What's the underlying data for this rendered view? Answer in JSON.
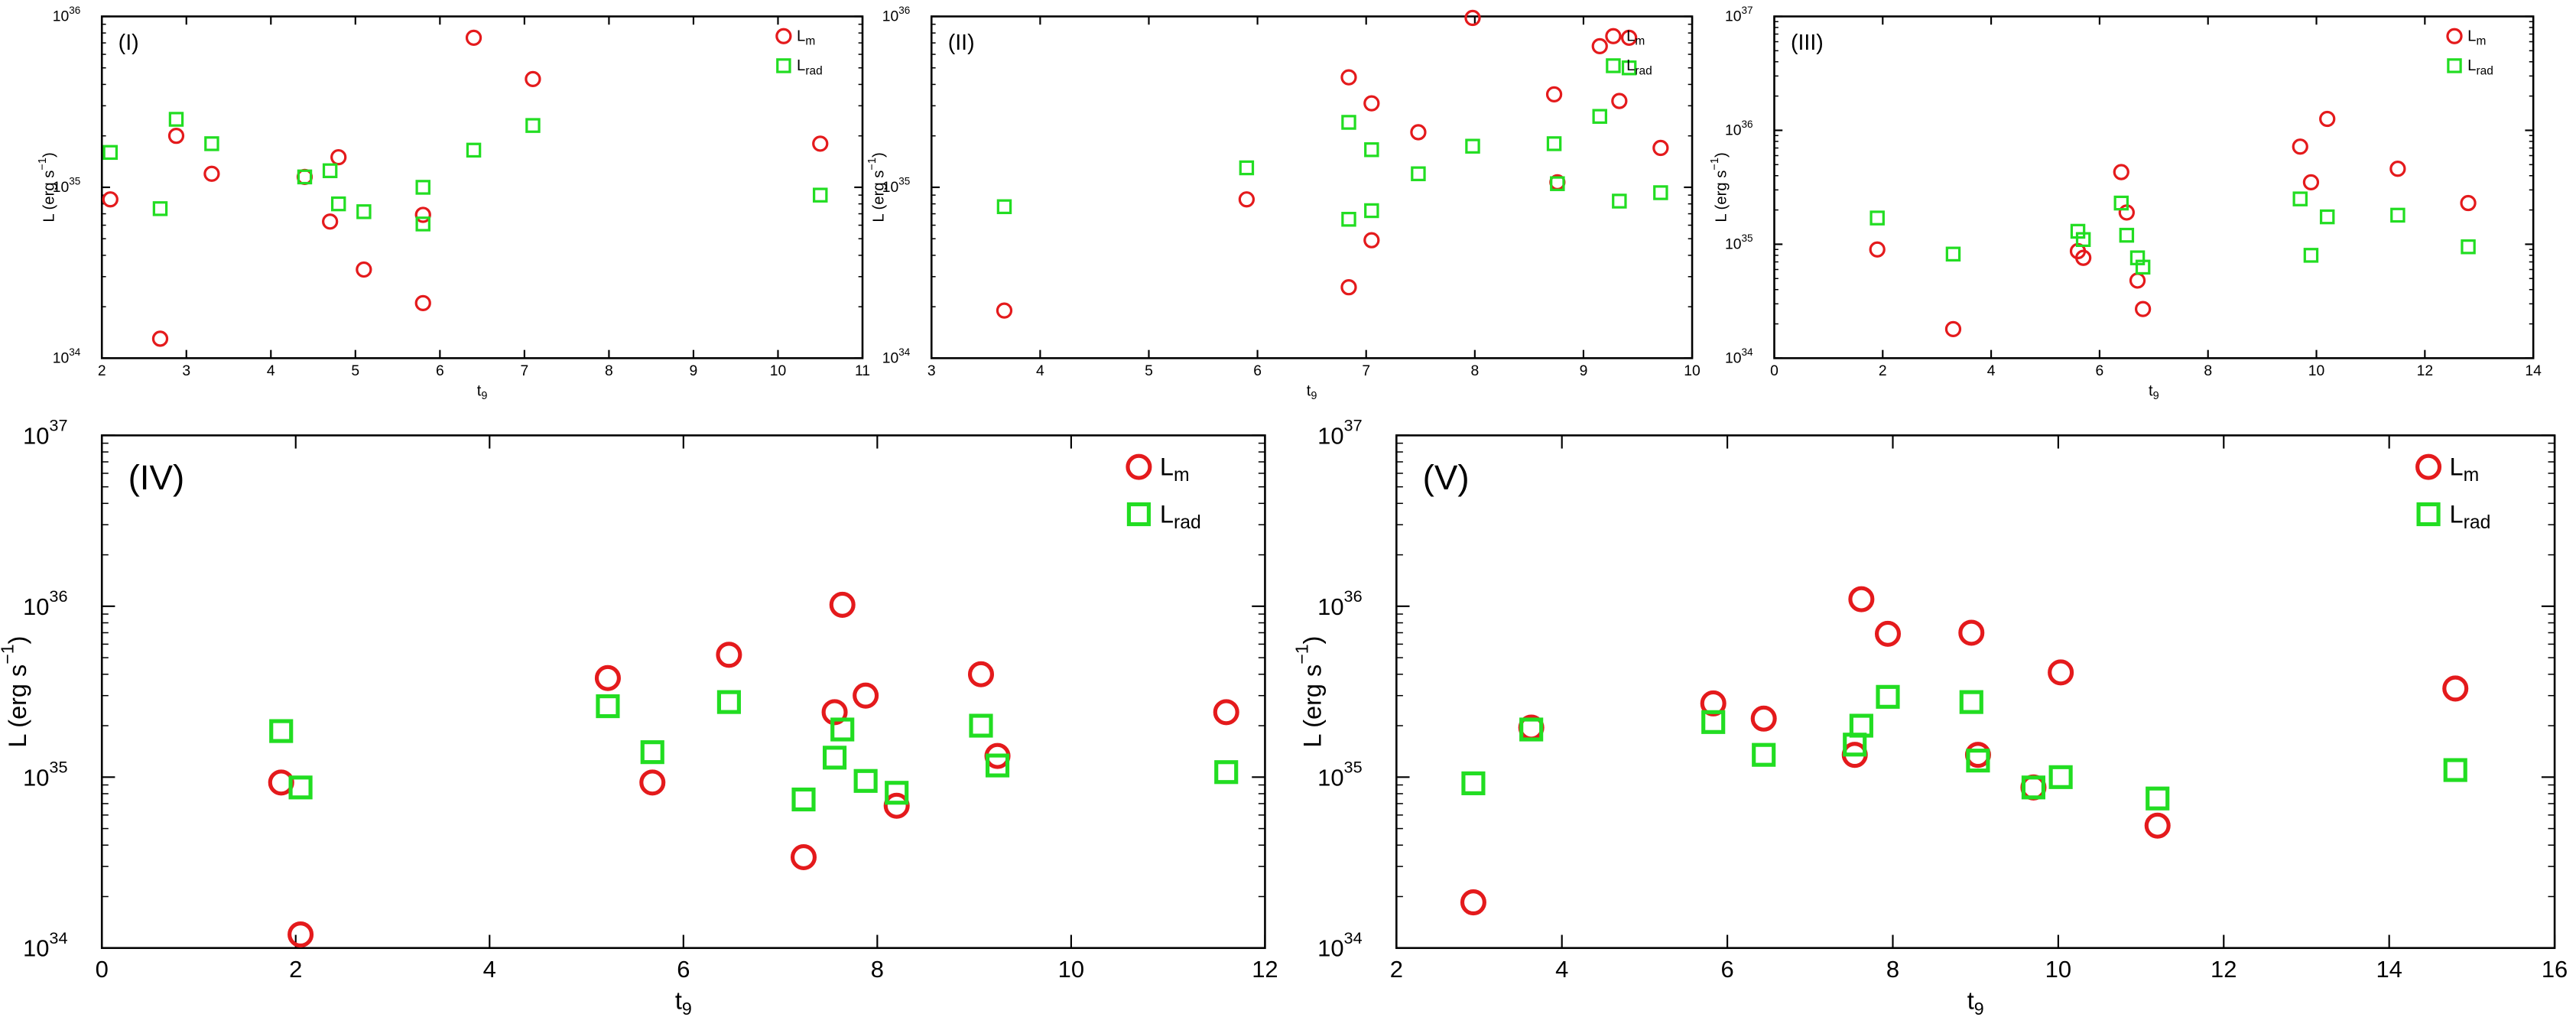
{
  "chart_data": [
    {
      "type": "scatter",
      "panel_label": "(I)",
      "x_label": [
        "t",
        "9"
      ],
      "y_label": [
        "L (erg s",
        "−1",
        ")"
      ],
      "xlim": [
        2,
        11
      ],
      "xticks": [
        2,
        3,
        4,
        5,
        6,
        7,
        8,
        9,
        10,
        11
      ],
      "ylim": [
        1e+34,
        1e+36
      ],
      "log_y": true,
      "yticks": [
        {
          "value": 1e+34,
          "label": "10",
          "exponent": "34"
        },
        {
          "value": 1e+35,
          "label": "10",
          "exponent": "35"
        },
        {
          "value": 1e+36,
          "label": "10",
          "exponent": "36"
        }
      ],
      "legend": "upper right",
      "series": [
        {
          "name": "L",
          "name_sub": "m",
          "color": "#e41a1c",
          "marker": "circle",
          "x": [
            2.1,
            2.69,
            2.88,
            3.3,
            4.4,
            4.7,
            4.8,
            5.1,
            5.8,
            5.8,
            6.4,
            7.1,
            10.5
          ],
          "values": [
            8.5e+34,
            1.3e+34,
            2e+35,
            1.2e+35,
            1.15e+35,
            6.3e+34,
            1.5e+35,
            3.3e+34,
            6.9e+34,
            2.1e+34,
            7.5e+35,
            4.3e+35,
            1.8e+35
          ]
        },
        {
          "name": "L",
          "name_sub": "rad",
          "color": "#22dd22",
          "marker": "square",
          "x": [
            2.1,
            2.69,
            2.88,
            3.3,
            4.4,
            4.7,
            4.8,
            5.1,
            5.8,
            5.8,
            6.4,
            7.1,
            10.5
          ],
          "values": [
            1.6e+35,
            7.5e+34,
            2.5e+35,
            1.8e+35,
            1.15e+35,
            1.25e+35,
            8e+34,
            7.2e+34,
            1e+35,
            6.1e+34,
            1.65e+35,
            2.3e+35,
            9e+34
          ]
        }
      ]
    },
    {
      "type": "scatter",
      "panel_label": "(II)",
      "x_label": [
        "t",
        "9"
      ],
      "y_label": [
        "L (erg s",
        "−1",
        ")"
      ],
      "xlim": [
        3,
        10
      ],
      "xticks": [
        3,
        4,
        5,
        6,
        7,
        8,
        9,
        10
      ],
      "ylim": [
        1e+34,
        1e+36
      ],
      "log_y": true,
      "yticks": [
        {
          "value": 1e+34,
          "label": "10",
          "exponent": "34"
        },
        {
          "value": 1e+35,
          "label": "10",
          "exponent": "35"
        },
        {
          "value": 1e+36,
          "label": "10",
          "exponent": "36"
        }
      ],
      "legend": "upper right",
      "series": [
        {
          "name": "L",
          "name_sub": "m",
          "color": "#e41a1c",
          "marker": "circle",
          "x": [
            3.67,
            5.9,
            6.84,
            6.84,
            7.05,
            7.05,
            7.48,
            7.98,
            8.73,
            8.76,
            9.15,
            9.33,
            9.42,
            9.71
          ],
          "values": [
            1.9e+34,
            8.5e+34,
            4.4e+35,
            2.6e+34,
            3.1e+35,
            4.9e+34,
            2.1e+35,
            9.8e+35,
            3.5e+35,
            1.07e+35,
            6.7e+35,
            3.2e+35,
            7.5e+35,
            1.7e+35
          ]
        },
        {
          "name": "L",
          "name_sub": "rad",
          "color": "#22dd22",
          "marker": "square",
          "x": [
            3.67,
            5.9,
            6.84,
            6.84,
            7.05,
            7.05,
            7.48,
            7.98,
            8.73,
            8.76,
            9.15,
            9.33,
            9.42,
            9.71
          ],
          "values": [
            7.7e+34,
            1.3e+35,
            2.4e+35,
            6.5e+34,
            1.66e+35,
            7.3e+34,
            1.2e+35,
            1.74e+35,
            1.8e+35,
            1.05e+35,
            2.6e+35,
            8.3e+34,
            5e+35,
            9.3e+34
          ]
        }
      ]
    },
    {
      "type": "scatter",
      "panel_label": "(III)",
      "x_label": [
        "t",
        "9"
      ],
      "y_label": [
        "L (erg s",
        "−1",
        ")"
      ],
      "xlim": [
        0,
        14
      ],
      "xticks": [
        0,
        2,
        4,
        6,
        8,
        10,
        12,
        14
      ],
      "ylim": [
        1e+34,
        1e+37
      ],
      "log_y": true,
      "yticks": [
        {
          "value": 1e+34,
          "label": "10",
          "exponent": "34"
        },
        {
          "value": 1e+35,
          "label": "10",
          "exponent": "35"
        },
        {
          "value": 1e+36,
          "label": "10",
          "exponent": "36"
        },
        {
          "value": 1e+37,
          "label": "10",
          "exponent": "37"
        }
      ],
      "legend": "upper right",
      "series": [
        {
          "name": "L",
          "name_sub": "m",
          "color": "#e41a1c",
          "marker": "circle",
          "x": [
            1.9,
            3.3,
            5.6,
            5.7,
            6.4,
            6.5,
            6.7,
            6.8,
            9.7,
            9.9,
            10.2,
            11.5,
            12.8
          ],
          "values": [
            9e+34,
            1.8e+34,
            8.7e+34,
            7.6e+34,
            4.3e+35,
            1.9e+35,
            4.8e+34,
            2.7e+34,
            7.2e+35,
            3.5e+35,
            1.26e+36,
            4.6e+35,
            2.3e+35
          ]
        },
        {
          "name": "L",
          "name_sub": "rad",
          "color": "#22dd22",
          "marker": "square",
          "x": [
            1.9,
            3.3,
            5.6,
            5.7,
            6.4,
            6.5,
            6.7,
            6.8,
            9.7,
            9.9,
            10.2,
            11.5,
            12.8
          ],
          "values": [
            1.7e+35,
            8.2e+34,
            1.3e+35,
            1.1e+35,
            2.3e+35,
            1.2e+35,
            7.6e+34,
            6.3e+34,
            2.5e+35,
            8e+34,
            1.74e+35,
            1.8e+35,
            9.5e+34
          ]
        }
      ]
    },
    {
      "type": "scatter",
      "panel_label": "(IV)",
      "x_label": [
        "t",
        "9"
      ],
      "y_label": [
        "L (erg s",
        "−1",
        ")"
      ],
      "xlim": [
        0,
        12
      ],
      "xticks": [
        0,
        2,
        4,
        6,
        8,
        10,
        12
      ],
      "ylim": [
        1e+34,
        1e+37
      ],
      "log_y": true,
      "yticks": [
        {
          "value": 1e+34,
          "label": "10",
          "exponent": "34"
        },
        {
          "value": 1e+35,
          "label": "10",
          "exponent": "35"
        },
        {
          "value": 1e+36,
          "label": "10",
          "exponent": "36"
        },
        {
          "value": 1e+37,
          "label": "10",
          "exponent": "37"
        }
      ],
      "legend": "upper right",
      "series": [
        {
          "name": "L",
          "name_sub": "m",
          "color": "#e41a1c",
          "marker": "circle",
          "x": [
            1.85,
            2.05,
            5.22,
            5.68,
            6.47,
            7.24,
            7.56,
            7.64,
            7.88,
            8.2,
            9.07,
            9.24,
            11.6
          ],
          "values": [
            9.3e+34,
            1.2e+34,
            3.8e+35,
            9.3e+34,
            5.2e+35,
            3.4e+34,
            2.4e+35,
            1.02e+36,
            3e+35,
            6.8e+34,
            4e+35,
            1.33e+35,
            2.4e+35
          ]
        },
        {
          "name": "L",
          "name_sub": "rad",
          "color": "#22dd22",
          "marker": "square",
          "x": [
            1.85,
            2.05,
            5.22,
            5.68,
            6.47,
            7.24,
            7.56,
            7.64,
            7.88,
            8.2,
            9.07,
            9.24,
            11.6
          ],
          "values": [
            1.86e+35,
            8.7e+34,
            2.6e+35,
            1.4e+35,
            2.75e+35,
            7.4e+34,
            1.3e+35,
            1.9e+35,
            9.5e+34,
            8.1e+34,
            2e+35,
            1.17e+35,
            1.07e+35
          ]
        }
      ]
    },
    {
      "type": "scatter",
      "panel_label": "(V)",
      "x_label": [
        "t",
        "9"
      ],
      "y_label": [
        "L (erg s",
        "−1",
        ")"
      ],
      "xlim": [
        2,
        16
      ],
      "xticks": [
        2,
        4,
        6,
        8,
        10,
        12,
        14,
        16
      ],
      "ylim": [
        1e+34,
        1e+37
      ],
      "log_y": true,
      "yticks": [
        {
          "value": 1e+34,
          "label": "10",
          "exponent": "34"
        },
        {
          "value": 1e+35,
          "label": "10",
          "exponent": "35"
        },
        {
          "value": 1e+36,
          "label": "10",
          "exponent": "36"
        },
        {
          "value": 1e+37,
          "label": "10",
          "exponent": "37"
        }
      ],
      "legend": "upper right",
      "series": [
        {
          "name": "L",
          "name_sub": "m",
          "color": "#e41a1c",
          "marker": "circle",
          "x": [
            2.93,
            3.63,
            5.83,
            6.44,
            7.54,
            7.62,
            7.94,
            8.95,
            9.03,
            9.7,
            10.03,
            11.2,
            14.8
          ],
          "values": [
            1.85e+34,
            1.95e+35,
            2.7e+35,
            2.2e+35,
            1.35e+35,
            1.1e+36,
            6.9e+35,
            7e+35,
            1.35e+35,
            8.7e+34,
            4.1e+35,
            5.2e+34,
            3.3e+35
          ]
        },
        {
          "name": "L",
          "name_sub": "rad",
          "color": "#22dd22",
          "marker": "square",
          "x": [
            2.93,
            3.63,
            5.83,
            6.44,
            7.54,
            7.62,
            7.94,
            8.95,
            9.03,
            9.7,
            10.03,
            11.2,
            14.8
          ],
          "values": [
            9.2e+34,
            1.9e+35,
            2.1e+35,
            1.35e+35,
            1.55e+35,
            2e+35,
            2.95e+35,
            2.75e+35,
            1.25e+35,
            8.7e+34,
            1e+35,
            7.5e+34,
            1.1e+35
          ]
        }
      ]
    }
  ]
}
